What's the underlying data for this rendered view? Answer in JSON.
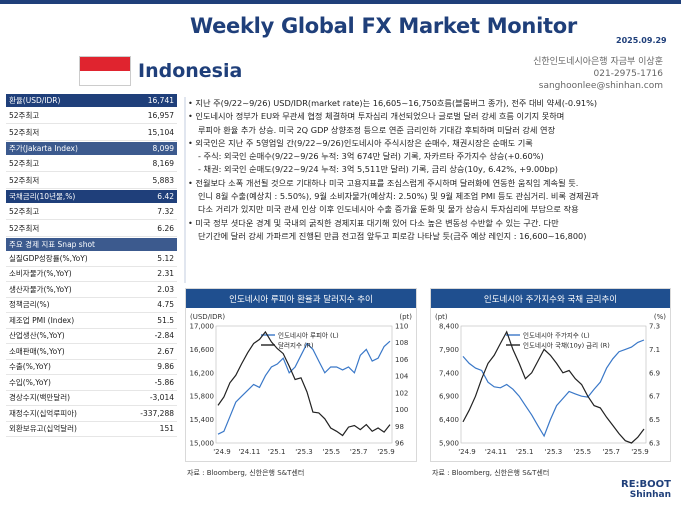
{
  "header": {
    "title": "Weekly Global FX Market Monitor",
    "date": "2025.09.29",
    "country": "Indonesia",
    "contact": [
      "신한인도네시아은행 자금부 이상훈",
      "021-2975-1716",
      "sanghoonlee@shinhan.com"
    ]
  },
  "left_panel": {
    "fx": {
      "label": "환율(USD/IDR)",
      "value": "16,741",
      "rows": [
        {
          "label": "52주최고",
          "value": "16,957"
        },
        {
          "label": "52주최저",
          "value": "15,104"
        }
      ]
    },
    "stock": {
      "label": "주가(Jakarta Index)",
      "value": "8,099",
      "rows": [
        {
          "label": "52주최고",
          "value": "8,169"
        },
        {
          "label": "52주최저",
          "value": "5,883"
        }
      ]
    },
    "bond": {
      "label": "국채금리(10년물,%)",
      "value": "6.42",
      "rows": [
        {
          "label": "52주최고",
          "value": "7.32"
        },
        {
          "label": "52주최저",
          "value": "6.26"
        }
      ]
    },
    "snapshot": {
      "label": "주요 경제 지표 Snap shot",
      "rows": [
        {
          "label": "실질GDP성장률(%,YoY)",
          "value": "5.12"
        },
        {
          "label": "소비자물가(%,YoY)",
          "value": "2.31"
        },
        {
          "label": "생산자물가(%,YoY)",
          "value": "2.03"
        },
        {
          "label": "정책금리(%)",
          "value": "4.75"
        },
        {
          "label": "제조업 PMI (Index)",
          "value": "51.5"
        },
        {
          "label": "산업생산(%,YoY)",
          "value": "-2.84"
        },
        {
          "label": "소매판매(%,YoY)",
          "value": "2.67"
        },
        {
          "label": "수출(%,YoY)",
          "value": "9.86"
        },
        {
          "label": "수입(%,YoY)",
          "value": "-5.86"
        },
        {
          "label": "경상수지(백만달러)",
          "value": "-3,014"
        },
        {
          "label": "재정수지(십억루피아)",
          "value": "-337,288"
        },
        {
          "label": "외환보유고(십억달러)",
          "value": "151"
        }
      ]
    }
  },
  "bullets": [
    {
      "text": "• 지난 주(9/22~9/26) USD/IDR(market rate)는 16,605~16,750흐름(블룸버그 종가), 전주 대비 약세(-0.91%)",
      "indent": false
    },
    {
      "text": "• 인도네시아 정부가 EU와 무관세 협정 체결하며 투자심리 개선되었으나 글로벌 달러 강세 흐름 이기지 못하며",
      "indent": false
    },
    {
      "text": "루피아 환율 추가 상승. 미국 2Q GDP 상향조정 등으로 연준 금리인하 기대감 후퇴하며 미달러 강세 연장",
      "indent": true
    },
    {
      "text": "• 외국인은 지난 주 5영업일 간(9/22~9/26)인도네시아 주식시장은 순매수, 채권시장은 순매도 기록",
      "indent": false
    },
    {
      "text": "- 주식: 외국인 순매수(9/22~9/26 누적: 3억 674만 달러) 기록, 자카르타 주가지수 상승(+0.60%)",
      "indent": true
    },
    {
      "text": "- 채권: 외국인 순매도(9/22~9/24 누적: 3억 5,511만 달러) 기록, 금리 상승(10y, 6.42%, +9.00bp)",
      "indent": true
    },
    {
      "text": "• 전월보다 소폭 개선될 것으로 기대하나 미국 고용지표를 조심스럽게 주시하며 달러화에 연동한 움직임 계속될 듯.",
      "indent": false
    },
    {
      "text": "인니 8월 수출(예상치 : 5.50%), 9월 소비자물가(예상치: 2.50%) 및 9월 제조업 PMI 등도 관심거리. 비록 경제권과",
      "indent": true
    },
    {
      "text": "다소 거리가 있지만 미국 관세 인상 이후 인도네시아 수출 증가율 둔화 및 물가 상승시 투자심리에 부담으로 작용",
      "indent": true
    },
    {
      "text": "• 미국 정부 셧다운 경계 및 국내의 굵직한 경제지표 대기해 있어 다소 높은 변동성 수반할 수 있는 구간. 다만",
      "indent": false
    },
    {
      "text": "단기간에 달러 강세 가파르게 진행된 만큼 전고점 앞두고 피로감 나타날 듯(금주 예상 레인지 : 16,600~16,800)",
      "indent": true
    }
  ],
  "chart_fx": {
    "title": "인도네시아 루피아 환율과 달러지수 추이",
    "left_unit": "(USD/IDR)",
    "right_unit": "(pt)",
    "source": "자료 : Bloomberg, 신한은행 S&T센터",
    "chart_data": {
      "type": "line",
      "x_ticks": [
        "'24.9",
        "'24.11",
        "'25.1",
        "'25.3",
        "'25.5",
        "'25.7",
        "'25.9"
      ],
      "y_left": {
        "min": 15000,
        "max": 17000,
        "ticks": [
          "15,000",
          "15,400",
          "15,800",
          "16,200",
          "16,600",
          "17,000"
        ]
      },
      "y_right": {
        "min": 96,
        "max": 110,
        "ticks": [
          "96",
          "98",
          "100",
          "102",
          "104",
          "106",
          "108",
          "110"
        ]
      },
      "series": [
        {
          "name": "인도네시아 루피아 (L)",
          "axis": "left",
          "color": "#3a78c8",
          "values": [
            15150,
            15200,
            15450,
            15700,
            15800,
            15900,
            16000,
            15950,
            16150,
            16300,
            16350,
            16450,
            16200,
            16300,
            16500,
            16700,
            16600,
            16400,
            16200,
            16300,
            16300,
            16250,
            16300,
            16200,
            16500,
            16600,
            16400,
            16450,
            16650,
            16740
          ]
        },
        {
          "name": "달러지수 (R)",
          "axis": "right",
          "color": "#222222",
          "values": [
            100.5,
            101.5,
            103.2,
            104.1,
            105.5,
            106.8,
            107.9,
            108.4,
            109.3,
            108.1,
            107.3,
            106.7,
            105.2,
            103.6,
            103.8,
            102.1,
            99.7,
            99.6,
            98.9,
            97.8,
            97.4,
            96.9,
            97.9,
            98.1,
            97.6,
            98.2,
            97.4,
            97.8,
            97.3,
            98.2
          ]
        }
      ]
    }
  },
  "chart_stock": {
    "title": "인도네시아 주가지수와 국채 금리추이",
    "left_unit": "(pt)",
    "right_unit": "(%)",
    "source": "자료 : Bloomberg, 신한은행 S&T센터",
    "chart_data": {
      "type": "line",
      "x_ticks": [
        "'24.9",
        "'24.11",
        "'25.1",
        "'25.3",
        "'25.5",
        "'25.7",
        "'25.9"
      ],
      "y_left": {
        "min": 5900,
        "max": 8400,
        "ticks": [
          "5,900",
          "6,400",
          "6,900",
          "7,400",
          "7,900",
          "8,400"
        ]
      },
      "y_right": {
        "min": 6.3,
        "max": 7.3,
        "ticks": [
          "6.3",
          "6.5",
          "6.7",
          "6.9",
          "7.1",
          "7.3"
        ]
      },
      "series": [
        {
          "name": "인도네시아 주가지수 (L)",
          "axis": "left",
          "color": "#3a78c8",
          "values": [
            7750,
            7600,
            7500,
            7450,
            7200,
            7100,
            7080,
            7150,
            7050,
            6900,
            6700,
            6500,
            6270,
            6050,
            6400,
            6700,
            6850,
            7000,
            6950,
            6900,
            6880,
            7050,
            7200,
            7500,
            7700,
            7850,
            7900,
            7950,
            8050,
            8100
          ]
        },
        {
          "name": "인도네시아 국채(10y) 금리 (R)",
          "axis": "right",
          "color": "#222222",
          "values": [
            6.48,
            6.58,
            6.7,
            6.85,
            6.98,
            7.05,
            7.15,
            7.25,
            7.1,
            6.98,
            6.85,
            6.9,
            7.0,
            7.1,
            7.05,
            6.98,
            6.9,
            6.92,
            6.85,
            6.8,
            6.7,
            6.62,
            6.6,
            6.52,
            6.45,
            6.38,
            6.32,
            6.3,
            6.35,
            6.42
          ]
        }
      ]
    }
  },
  "brand": {
    "line1": "RE:BOOT",
    "line2": "Shinhan"
  }
}
